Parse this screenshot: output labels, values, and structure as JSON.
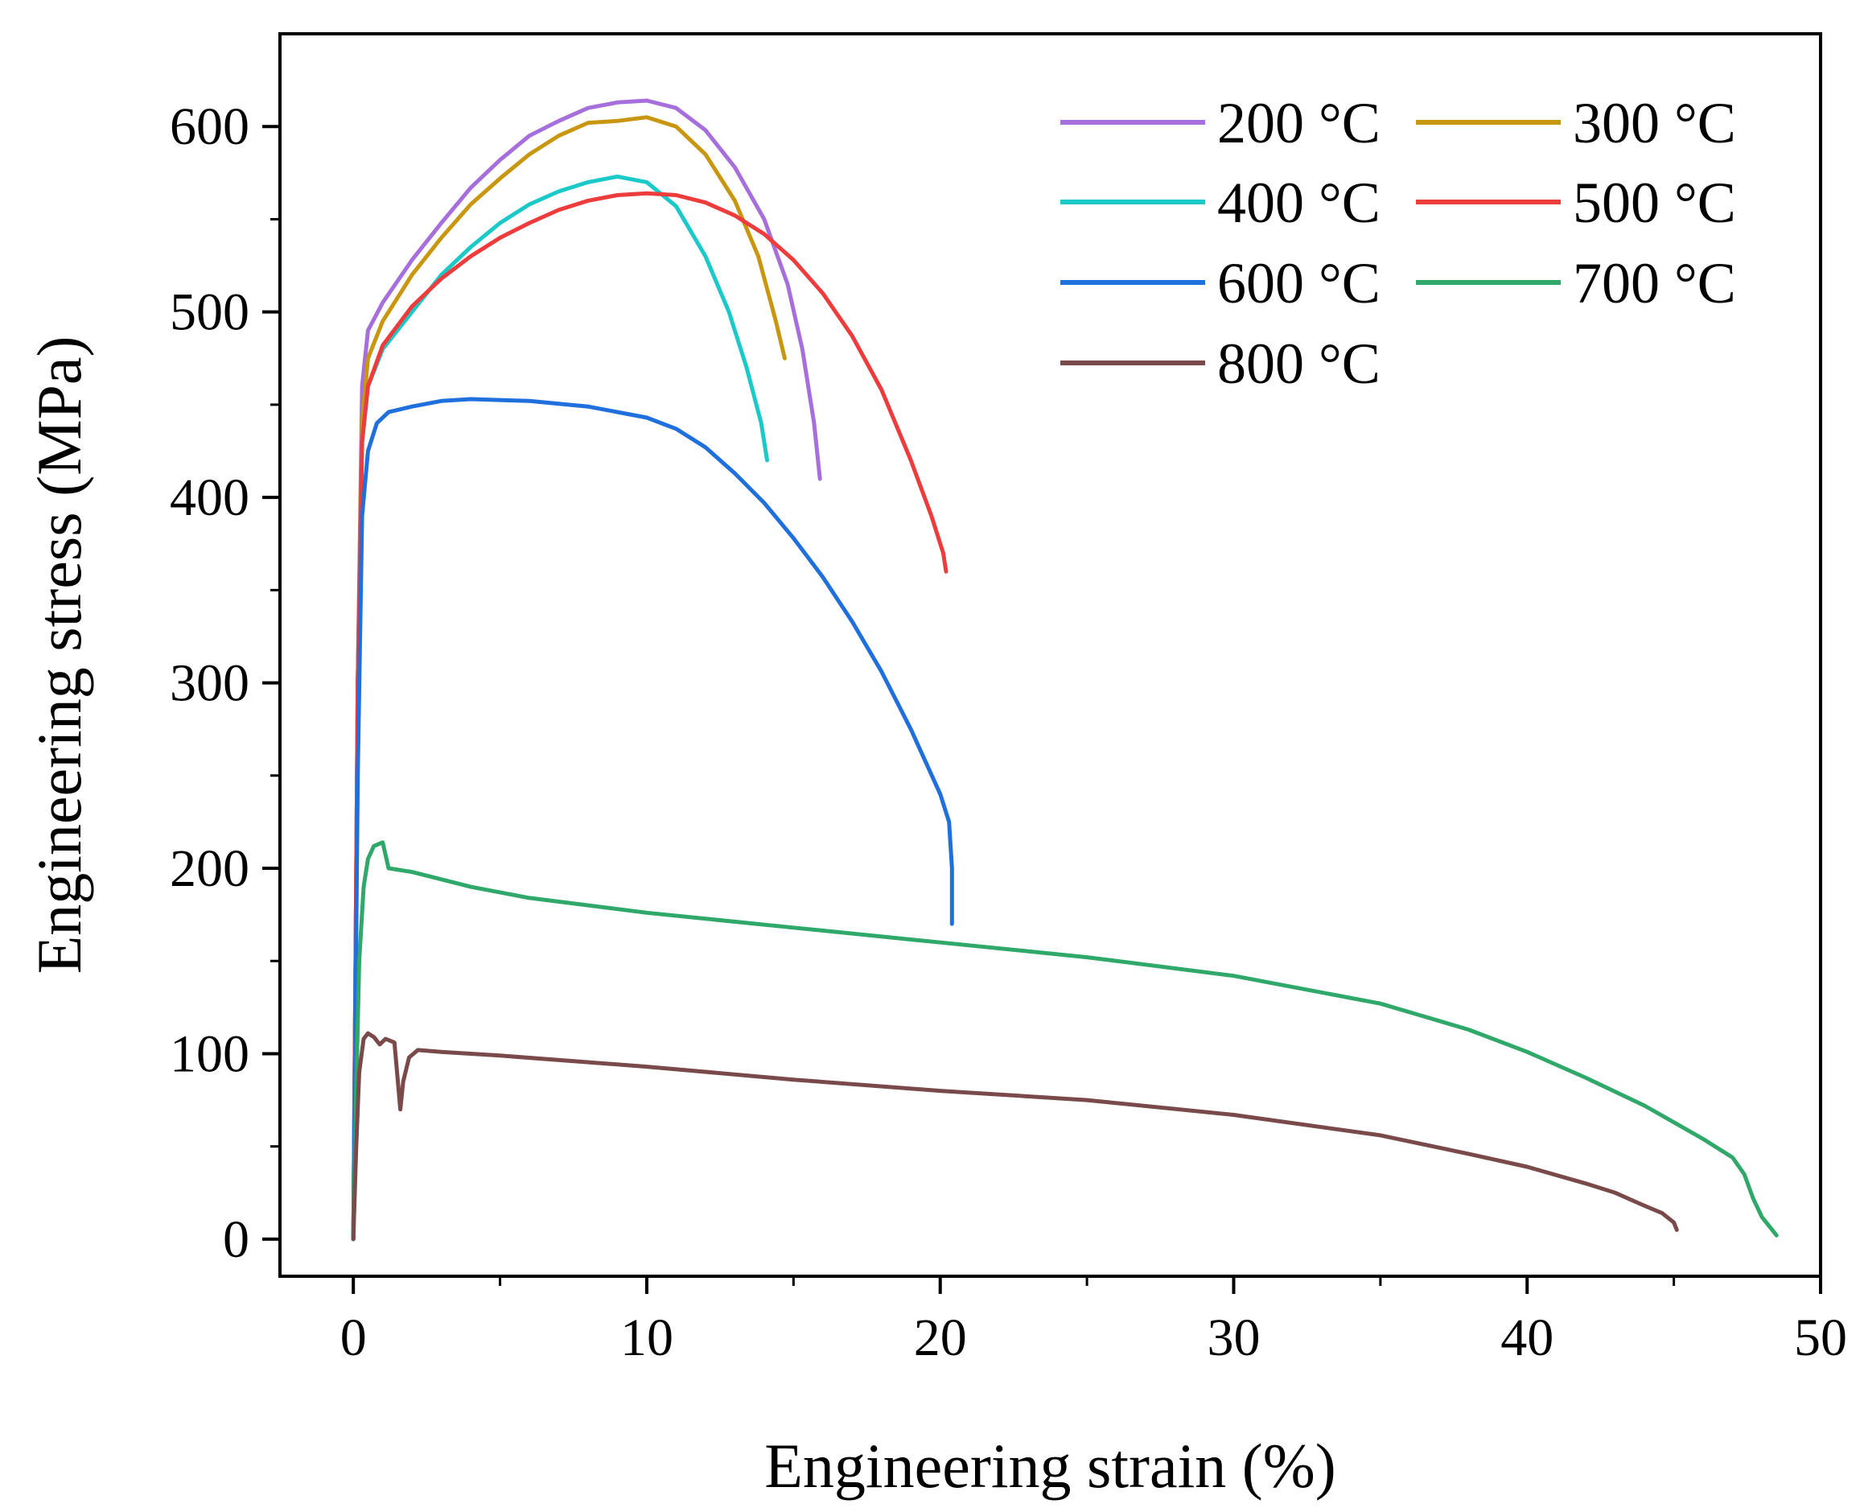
{
  "chart_data": {
    "type": "line",
    "title": "",
    "xlabel": "Engineering strain (%)",
    "ylabel": "Engineering stress (MPa)",
    "xlim": [
      -2.5,
      50
    ],
    "ylim": [
      -20,
      650
    ],
    "xticks": [
      0,
      10,
      20,
      30,
      40,
      50
    ],
    "yticks": [
      0,
      100,
      200,
      300,
      400,
      500,
      600
    ],
    "xtick_labels": [
      "0",
      "10",
      "20",
      "30",
      "40",
      "50"
    ],
    "ytick_labels": [
      "0",
      "100",
      "200",
      "300",
      "400",
      "500",
      "600"
    ],
    "grid": false,
    "legend_position": "top-right",
    "series": [
      {
        "name": "200 °C",
        "color": "#a66fdb",
        "x": [
          0,
          0.15,
          0.3,
          0.5,
          1,
          2,
          3,
          4,
          5,
          6,
          7,
          8,
          9,
          10,
          11,
          12,
          13,
          14,
          14.8,
          15.3,
          15.7,
          15.9
        ],
        "y": [
          0,
          300,
          460,
          490,
          505,
          528,
          548,
          567,
          582,
          595,
          603,
          610,
          613,
          614,
          610,
          598,
          578,
          550,
          515,
          480,
          440,
          410
        ]
      },
      {
        "name": "300 °C",
        "color": "#c8960f",
        "x": [
          0,
          0.15,
          0.3,
          0.5,
          1,
          2,
          3,
          4,
          5,
          6,
          7,
          8,
          9,
          10,
          11,
          12,
          13,
          13.8,
          14.4,
          14.7
        ],
        "y": [
          0,
          300,
          440,
          475,
          495,
          520,
          540,
          558,
          572,
          585,
          595,
          602,
          603,
          605,
          600,
          585,
          560,
          530,
          495,
          475
        ]
      },
      {
        "name": "400 °C",
        "color": "#1cc9c9",
        "x": [
          0,
          0.15,
          0.3,
          0.5,
          1,
          2,
          3,
          4,
          5,
          6,
          7,
          8,
          9,
          10,
          11,
          12,
          12.8,
          13.4,
          13.9,
          14.1
        ],
        "y": [
          0,
          300,
          430,
          460,
          480,
          500,
          520,
          535,
          548,
          558,
          565,
          570,
          573,
          570,
          557,
          530,
          500,
          470,
          440,
          420
        ]
      },
      {
        "name": "500 °C",
        "color": "#ee3b3b",
        "x": [
          0,
          0.15,
          0.3,
          0.5,
          1,
          2,
          3,
          4,
          5,
          6,
          7,
          8,
          9,
          10,
          11,
          12,
          13,
          14,
          15,
          16,
          17,
          18,
          19,
          19.7,
          20.1,
          20.2
        ],
        "y": [
          0,
          300,
          430,
          460,
          482,
          503,
          518,
          530,
          540,
          548,
          555,
          560,
          563,
          564,
          563,
          559,
          552,
          542,
          528,
          510,
          487,
          458,
          420,
          390,
          370,
          360
        ]
      },
      {
        "name": "600 °C",
        "color": "#1f6fdc",
        "x": [
          0,
          0.15,
          0.3,
          0.5,
          0.8,
          1.2,
          2,
          3,
          4,
          6,
          8,
          10,
          11,
          12,
          13,
          14,
          15,
          16,
          17,
          18,
          19,
          20,
          20.3,
          20.4,
          20.4
        ],
        "y": [
          0,
          250,
          390,
          425,
          440,
          446,
          449,
          452,
          453,
          452,
          449,
          443,
          437,
          427,
          413,
          397,
          378,
          357,
          333,
          306,
          275,
          240,
          225,
          200,
          170
        ]
      },
      {
        "name": "700 °C",
        "color": "#2fa86a",
        "x": [
          0,
          0.1,
          0.2,
          0.35,
          0.5,
          0.7,
          1.0,
          1.2,
          2,
          4,
          6,
          10,
          15,
          20,
          25,
          30,
          35,
          38,
          40,
          42,
          44,
          45,
          46,
          47,
          47.4,
          47.7,
          48,
          48.3,
          48.5
        ],
        "y": [
          0,
          80,
          150,
          190,
          205,
          212,
          214,
          200,
          198,
          190,
          184,
          176,
          168,
          160,
          152,
          142,
          127,
          113,
          101,
          87,
          72,
          63,
          54,
          44,
          35,
          22,
          12,
          6,
          2
        ]
      },
      {
        "name": "800 °C",
        "color": "#7a4a4a",
        "x": [
          0,
          0.1,
          0.2,
          0.35,
          0.5,
          0.7,
          0.9,
          1.1,
          1.4,
          1.6,
          1.7,
          1.9,
          2.2,
          3,
          5,
          10,
          15,
          20,
          25,
          30,
          35,
          38,
          40,
          42,
          43,
          44,
          44.6,
          45,
          45.1
        ],
        "y": [
          0,
          50,
          90,
          108,
          111,
          109,
          105,
          108,
          106,
          70,
          85,
          98,
          102,
          101,
          99,
          93,
          86,
          80,
          75,
          67,
          56,
          46,
          39,
          30,
          25,
          18,
          14,
          9,
          5
        ]
      }
    ]
  }
}
